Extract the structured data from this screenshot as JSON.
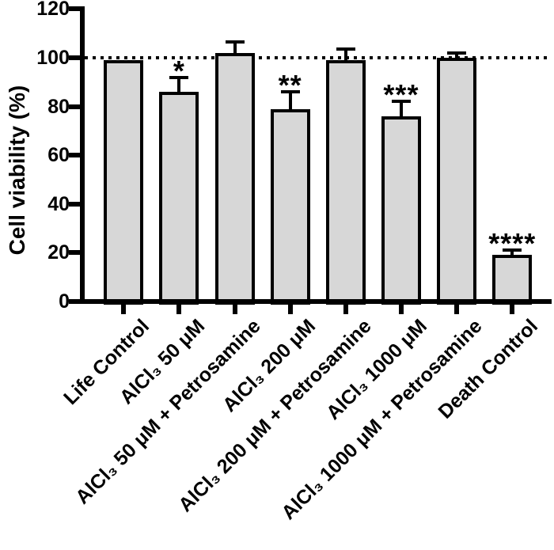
{
  "chart_data": {
    "type": "bar",
    "title": "",
    "xlabel": "",
    "ylabel": "Cell viability (%)",
    "ylim": [
      0,
      120
    ],
    "yticks": [
      0,
      20,
      40,
      60,
      80,
      100,
      120
    ],
    "reference_line": 100,
    "grid": false,
    "legend": null,
    "categories": [
      "Life Control",
      "AlCl₃ 50 μM",
      "AlCl₃ 50 μM + Petrosamine",
      "AlCl₃ 200 μM",
      "AlCl₃ 200 μM + Petrosamine",
      "AlCl₃ 1000 μM",
      "AlCl₃ 1000 μM + Petrosamine",
      "Death Control"
    ],
    "values": [
      99,
      86,
      102,
      79,
      99,
      76,
      100,
      19
    ],
    "errors": [
      0,
      6,
      4.5,
      7,
      4.5,
      6,
      2,
      2
    ],
    "significance": [
      "",
      "*",
      "",
      "**",
      "",
      "***",
      "",
      "****"
    ],
    "colors": {
      "bar_fill": "#d7d7d7",
      "bar_border": "#000000",
      "axis": "#000000",
      "background": "#ffffff"
    }
  }
}
